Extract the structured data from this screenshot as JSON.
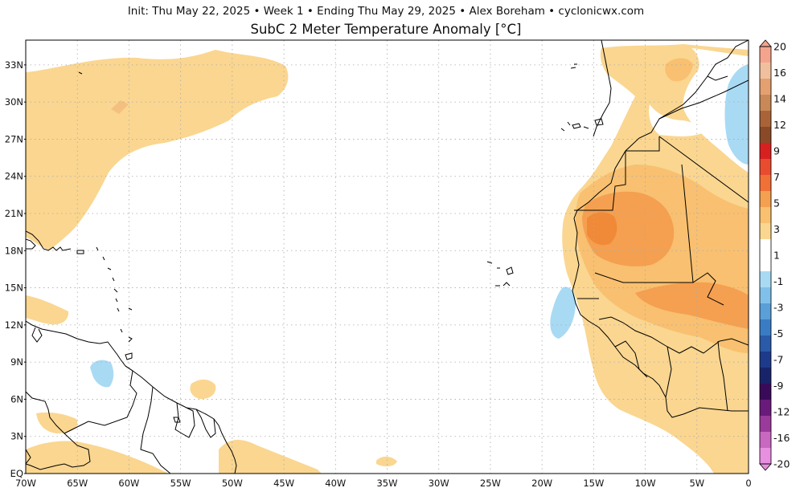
{
  "header": {
    "line1": "Init: Thu May 22, 2025 • Week 1 • Ending Thu May 29, 2025 • Alex Boreham • cyclonicwx.com",
    "title": "SubC 2 Meter Temperature Anomaly [°C]"
  },
  "map": {
    "extent": {
      "lon_min": -70,
      "lon_max": 0,
      "lat_min": 0,
      "lat_max": 35
    },
    "lat_labels": [
      {
        "lat": 33,
        "text": "33N"
      },
      {
        "lat": 30,
        "text": "30N"
      },
      {
        "lat": 27,
        "text": "27N"
      },
      {
        "lat": 24,
        "text": "24N"
      },
      {
        "lat": 21,
        "text": "21N"
      },
      {
        "lat": 18,
        "text": "18N"
      },
      {
        "lat": 15,
        "text": "15N"
      },
      {
        "lat": 12,
        "text": "12N"
      },
      {
        "lat": 9,
        "text": "9N"
      },
      {
        "lat": 6,
        "text": "6N"
      },
      {
        "lat": 3,
        "text": "3N"
      },
      {
        "lat": 0,
        "text": "EQ"
      }
    ],
    "lon_labels": [
      {
        "lon": -70,
        "text": "70W"
      },
      {
        "lon": -65,
        "text": "65W"
      },
      {
        "lon": -60,
        "text": "60W"
      },
      {
        "lon": -55,
        "text": "55W"
      },
      {
        "lon": -50,
        "text": "50W"
      },
      {
        "lon": -45,
        "text": "45W"
      },
      {
        "lon": -40,
        "text": "40W"
      },
      {
        "lon": -35,
        "text": "35W"
      },
      {
        "lon": -30,
        "text": "30W"
      },
      {
        "lon": -25,
        "text": "25W"
      },
      {
        "lon": -20,
        "text": "20W"
      },
      {
        "lon": -15,
        "text": "15W"
      },
      {
        "lon": -10,
        "text": "10W"
      },
      {
        "lon": -5,
        "text": "5W"
      },
      {
        "lon": 0,
        "text": "0"
      }
    ]
  },
  "colorbar": {
    "labels": [
      "20",
      "16",
      "14",
      "12",
      "9",
      "7",
      "5",
      "3",
      "1",
      "-1",
      "-3",
      "-5",
      "-7",
      "-9",
      "-12",
      "-16",
      "-20"
    ],
    "colors": [
      "#f4a48e",
      "#f0c09e",
      "#e4a070",
      "#c88858",
      "#a86438",
      "#8a4a28",
      "#d82020",
      "#e84c30",
      "#f07038",
      "#f4a050",
      "#f8c070",
      "#fad690",
      "#ffffff",
      "#ffffff",
      "#a8daf4",
      "#80c0ea",
      "#5a9fd8",
      "#3a7cc4",
      "#2a5aa8",
      "#1e3a8a",
      "#18246a",
      "#3a0a5a",
      "#6a1a7a",
      "#9a3a9a",
      "#c868c0",
      "#e890e0"
    ]
  },
  "anomaly_colors": {
    "light_warm": "#fad690",
    "warm": "#f8c070",
    "warmer": "#f4a050",
    "warmest": "#f08a38",
    "cool": "#a8daf4"
  }
}
